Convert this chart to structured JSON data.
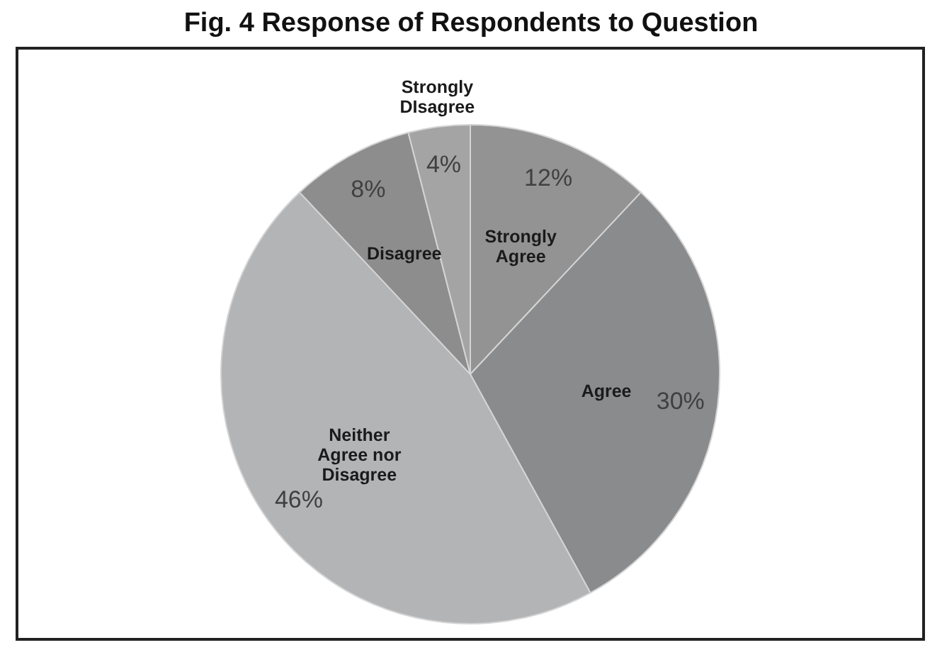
{
  "chart_data": {
    "type": "pie",
    "title": "Fig. 4 Response of Respondents to Question",
    "categories": [
      "Strongly Agree",
      "Agree",
      "Neither Agree nor Disagree",
      "Disagree",
      "Strongly DIsagree"
    ],
    "values": [
      12,
      30,
      46,
      8,
      4
    ],
    "colors": [
      "#939393",
      "#8a8b8d",
      "#b3b4b6",
      "#8d8d8d",
      "#a4a4a4"
    ],
    "value_labels": [
      "12%",
      "30%",
      "46%",
      "8%",
      "4%"
    ]
  }
}
